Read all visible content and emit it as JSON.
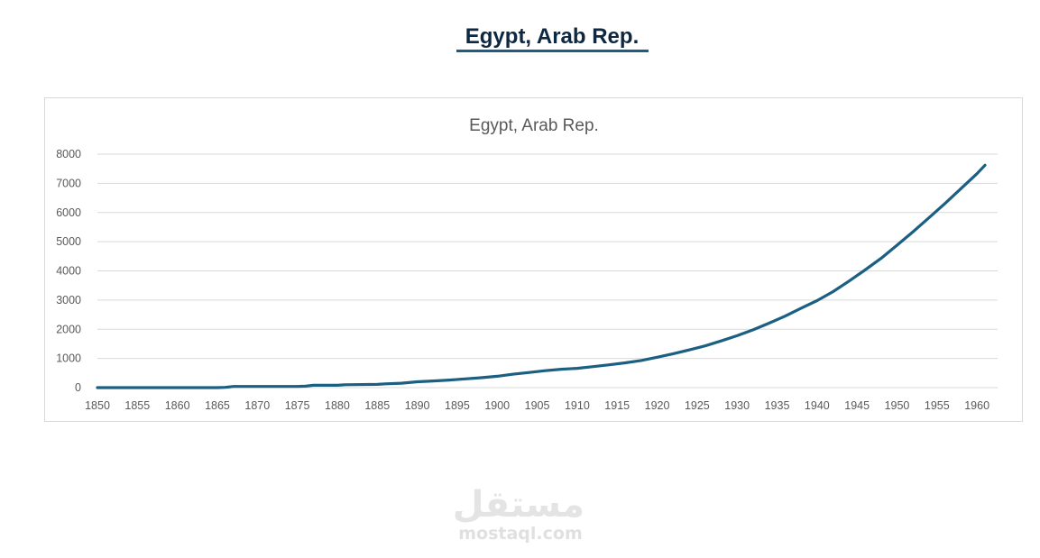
{
  "page": {
    "heading": "Egypt, Arab Rep."
  },
  "colors": {
    "heading": "#0e2841",
    "underline": "#1f5c84",
    "series_line": "#1b5f82",
    "gridline": "#d9d9d9",
    "axis_text": "#595959",
    "watermark": "#e4e4e4"
  },
  "chart_data": {
    "type": "line",
    "title": "Egypt, Arab Rep.",
    "xlabel": "",
    "ylabel": "",
    "xlim": [
      1850,
      1961
    ],
    "ylim": [
      0,
      8000
    ],
    "x_ticks": [
      1850,
      1855,
      1860,
      1865,
      1870,
      1875,
      1880,
      1885,
      1890,
      1895,
      1900,
      1905,
      1910,
      1915,
      1920,
      1925,
      1930,
      1935,
      1940,
      1945,
      1950,
      1955,
      1960
    ],
    "y_ticks": [
      0,
      1000,
      2000,
      3000,
      4000,
      5000,
      6000,
      7000,
      8000
    ],
    "grid": "horizontal",
    "legend": "none",
    "series": [
      {
        "x": [
          1850,
          1855,
          1860,
          1865,
          1866,
          1867,
          1870,
          1875,
          1876,
          1877,
          1880,
          1881,
          1885,
          1886,
          1888,
          1890,
          1892,
          1894,
          1896,
          1898,
          1900,
          1902,
          1904,
          1906,
          1908,
          1910,
          1912,
          1914,
          1916,
          1918,
          1920,
          1922,
          1924,
          1926,
          1928,
          1930,
          1932,
          1934,
          1936,
          1938,
          1940,
          1942,
          1944,
          1946,
          1948,
          1950,
          1952,
          1954,
          1956,
          1958,
          1960,
          1961
        ],
        "values": [
          0,
          0,
          0,
          0,
          10,
          40,
          40,
          40,
          50,
          80,
          80,
          100,
          110,
          130,
          150,
          200,
          230,
          260,
          300,
          340,
          390,
          460,
          520,
          580,
          630,
          660,
          720,
          780,
          850,
          930,
          1040,
          1160,
          1290,
          1430,
          1600,
          1780,
          1980,
          2210,
          2450,
          2720,
          2980,
          3290,
          3650,
          4030,
          4430,
          4880,
          5340,
          5820,
          6310,
          6820,
          7330,
          7620
        ]
      }
    ]
  },
  "watermark": {
    "logo": "مستقل",
    "text": "mostaql.com"
  }
}
